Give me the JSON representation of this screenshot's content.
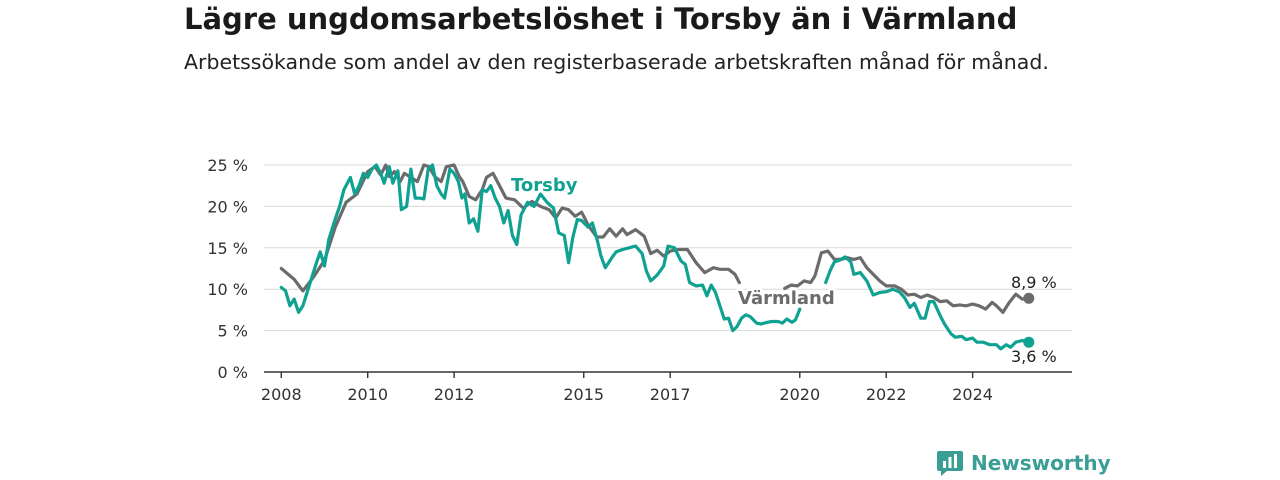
{
  "title": "Lägre ungdomsarbetslöshet i Torsby än i Värmland",
  "subtitle": "Arbetssökande som andel av den registerbaserade arbetskraften månad för månad.",
  "brand": {
    "name": "Newsworthy",
    "icon": "bar-chart-icon"
  },
  "chart_data": {
    "type": "line",
    "ylim": [
      0,
      25
    ],
    "y_ticks": [
      0,
      5,
      10,
      15,
      20,
      25
    ],
    "y_tick_labels": [
      "0 %",
      "5 %",
      "10 %",
      "15 %",
      "20 %",
      "25 %"
    ],
    "x_ticks": [
      2008,
      2010,
      2012,
      2015,
      2017,
      2020,
      2022,
      2024
    ],
    "x_tick_labels": [
      "2008",
      "2010",
      "2012",
      "2015",
      "2017",
      "2020",
      "2022",
      "2024"
    ],
    "grid": true,
    "series": [
      {
        "name": "Värmland",
        "color": "#6b6b6e",
        "end_label": "8,9 %",
        "points": [
          [
            2008.0,
            12.5
          ],
          [
            2008.3,
            11.2
          ],
          [
            2008.5,
            9.8
          ],
          [
            2008.75,
            11.5
          ],
          [
            2009.0,
            13.5
          ],
          [
            2009.25,
            17.5
          ],
          [
            2009.5,
            20.5
          ],
          [
            2009.75,
            21.5
          ],
          [
            2010.0,
            24.2
          ],
          [
            2010.17,
            24.8
          ],
          [
            2010.3,
            23.8
          ],
          [
            2010.42,
            25.0
          ],
          [
            2010.5,
            23.6
          ],
          [
            2010.62,
            24.2
          ],
          [
            2010.75,
            23.0
          ],
          [
            2010.85,
            24.0
          ],
          [
            2011.0,
            23.5
          ],
          [
            2011.15,
            23.0
          ],
          [
            2011.3,
            25.0
          ],
          [
            2011.42,
            24.8
          ],
          [
            2011.55,
            23.6
          ],
          [
            2011.7,
            23.0
          ],
          [
            2011.82,
            24.8
          ],
          [
            2012.0,
            25.0
          ],
          [
            2012.12,
            23.6
          ],
          [
            2012.2,
            23.0
          ],
          [
            2012.35,
            21.2
          ],
          [
            2012.5,
            20.8
          ],
          [
            2012.65,
            22.0
          ],
          [
            2012.75,
            23.5
          ],
          [
            2012.9,
            24.0
          ],
          [
            2013.2,
            21.0
          ],
          [
            2013.4,
            20.8
          ],
          [
            2013.6,
            19.8
          ],
          [
            2013.8,
            20.6
          ],
          [
            2014.0,
            20.0
          ],
          [
            2014.2,
            19.6
          ],
          [
            2014.35,
            18.6
          ],
          [
            2014.5,
            19.8
          ],
          [
            2014.65,
            19.6
          ],
          [
            2014.8,
            18.8
          ],
          [
            2014.95,
            19.3
          ],
          [
            2015.12,
            17.6
          ],
          [
            2015.3,
            16.3
          ],
          [
            2015.45,
            16.3
          ],
          [
            2015.6,
            17.3
          ],
          [
            2015.75,
            16.4
          ],
          [
            2015.9,
            17.3
          ],
          [
            2016.0,
            16.6
          ],
          [
            2016.2,
            17.2
          ],
          [
            2016.4,
            16.4
          ],
          [
            2016.55,
            14.3
          ],
          [
            2016.7,
            14.7
          ],
          [
            2016.85,
            14.0
          ],
          [
            2017.0,
            14.6
          ],
          [
            2017.2,
            14.8
          ],
          [
            2017.4,
            14.8
          ],
          [
            2017.6,
            13.2
          ],
          [
            2017.8,
            12.0
          ],
          [
            2018.0,
            12.6
          ],
          [
            2018.15,
            12.4
          ],
          [
            2018.35,
            12.4
          ],
          [
            2018.5,
            11.8
          ],
          [
            2018.6,
            10.8
          ],
          [
            2019.65,
            10.1
          ],
          [
            2019.8,
            10.5
          ],
          [
            2019.95,
            10.4
          ],
          [
            2020.1,
            11.0
          ],
          [
            2020.25,
            10.8
          ],
          [
            2020.35,
            11.6
          ],
          [
            2020.5,
            14.4
          ],
          [
            2020.65,
            14.6
          ],
          [
            2020.8,
            13.6
          ],
          [
            2020.95,
            13.6
          ],
          [
            2021.1,
            13.8
          ],
          [
            2021.25,
            13.6
          ],
          [
            2021.4,
            13.8
          ],
          [
            2021.55,
            12.6
          ],
          [
            2021.7,
            11.8
          ],
          [
            2021.85,
            11.0
          ],
          [
            2022.0,
            10.4
          ],
          [
            2022.2,
            10.4
          ],
          [
            2022.35,
            10.0
          ],
          [
            2022.5,
            9.3
          ],
          [
            2022.65,
            9.4
          ],
          [
            2022.8,
            9.0
          ],
          [
            2022.95,
            9.3
          ],
          [
            2023.1,
            9.0
          ],
          [
            2023.25,
            8.5
          ],
          [
            2023.4,
            8.6
          ],
          [
            2023.55,
            8.0
          ],
          [
            2023.7,
            8.1
          ],
          [
            2023.85,
            8.0
          ],
          [
            2024.0,
            8.2
          ],
          [
            2024.15,
            8.0
          ],
          [
            2024.3,
            7.6
          ],
          [
            2024.45,
            8.4
          ],
          [
            2024.55,
            8.0
          ],
          [
            2024.7,
            7.2
          ],
          [
            2024.85,
            8.4
          ],
          [
            2025.0,
            9.4
          ],
          [
            2025.15,
            8.8
          ],
          [
            2025.3,
            8.9
          ]
        ]
      },
      {
        "name": "Torsby",
        "color": "#0fa191",
        "end_label": "3,6 %",
        "points": [
          [
            2008.0,
            10.2
          ],
          [
            2008.1,
            9.8
          ],
          [
            2008.2,
            8.0
          ],
          [
            2008.3,
            8.8
          ],
          [
            2008.4,
            7.2
          ],
          [
            2008.5,
            8.0
          ],
          [
            2008.65,
            10.5
          ],
          [
            2008.8,
            13.0
          ],
          [
            2008.9,
            14.5
          ],
          [
            2009.0,
            12.8
          ],
          [
            2009.1,
            16.0
          ],
          [
            2009.25,
            18.5
          ],
          [
            2009.35,
            20.0
          ],
          [
            2009.45,
            22.0
          ],
          [
            2009.6,
            23.5
          ],
          [
            2009.7,
            21.5
          ],
          [
            2009.8,
            22.5
          ],
          [
            2009.9,
            24.0
          ],
          [
            2010.0,
            23.5
          ],
          [
            2010.1,
            24.5
          ],
          [
            2010.2,
            25.0
          ],
          [
            2010.3,
            24.0
          ],
          [
            2010.38,
            22.8
          ],
          [
            2010.5,
            24.8
          ],
          [
            2010.58,
            22.8
          ],
          [
            2010.7,
            24.3
          ],
          [
            2010.78,
            19.6
          ],
          [
            2010.9,
            20.0
          ],
          [
            2011.0,
            24.5
          ],
          [
            2011.1,
            21.0
          ],
          [
            2011.2,
            21.0
          ],
          [
            2011.3,
            20.9
          ],
          [
            2011.4,
            24.5
          ],
          [
            2011.5,
            25.0
          ],
          [
            2011.6,
            22.5
          ],
          [
            2011.7,
            21.5
          ],
          [
            2011.78,
            21.0
          ],
          [
            2011.9,
            24.5
          ],
          [
            2012.0,
            24.0
          ],
          [
            2012.1,
            23.0
          ],
          [
            2012.18,
            21.0
          ],
          [
            2012.25,
            21.5
          ],
          [
            2012.35,
            18.0
          ],
          [
            2012.45,
            18.5
          ],
          [
            2012.55,
            17.0
          ],
          [
            2012.65,
            22.0
          ],
          [
            2012.75,
            21.8
          ],
          [
            2012.85,
            22.5
          ],
          [
            2012.95,
            21.0
          ],
          [
            2013.05,
            20.0
          ],
          [
            2013.15,
            18.0
          ],
          [
            2013.25,
            19.5
          ],
          [
            2013.35,
            16.5
          ],
          [
            2013.45,
            15.4
          ],
          [
            2013.55,
            19.0
          ],
          [
            2013.7,
            20.5
          ],
          [
            2013.85,
            20.0
          ],
          [
            2014.0,
            21.5
          ],
          [
            2014.15,
            20.5
          ],
          [
            2014.3,
            19.8
          ],
          [
            2014.42,
            16.8
          ],
          [
            2014.55,
            16.5
          ],
          [
            2014.65,
            13.2
          ],
          [
            2014.75,
            16.3
          ],
          [
            2014.85,
            18.4
          ],
          [
            2014.95,
            18.3
          ],
          [
            2015.1,
            17.5
          ],
          [
            2015.2,
            18.0
          ],
          [
            2015.3,
            16.2
          ],
          [
            2015.4,
            14.0
          ],
          [
            2015.5,
            12.6
          ],
          [
            2015.65,
            13.8
          ],
          [
            2015.75,
            14.5
          ],
          [
            2015.9,
            14.8
          ],
          [
            2016.05,
            15.0
          ],
          [
            2016.2,
            15.2
          ],
          [
            2016.35,
            14.3
          ],
          [
            2016.45,
            12.2
          ],
          [
            2016.55,
            11.0
          ],
          [
            2016.7,
            11.7
          ],
          [
            2016.85,
            12.8
          ],
          [
            2016.95,
            15.2
          ],
          [
            2017.1,
            15.0
          ],
          [
            2017.25,
            13.4
          ],
          [
            2017.35,
            13.0
          ],
          [
            2017.45,
            10.8
          ],
          [
            2017.6,
            10.4
          ],
          [
            2017.75,
            10.5
          ],
          [
            2017.85,
            9.2
          ],
          [
            2017.95,
            10.5
          ],
          [
            2018.05,
            9.6
          ],
          [
            2018.15,
            8.0
          ],
          [
            2018.25,
            6.4
          ],
          [
            2018.35,
            6.5
          ],
          [
            2018.45,
            5.0
          ],
          [
            2018.55,
            5.5
          ],
          [
            2018.65,
            6.5
          ],
          [
            2018.75,
            6.9
          ],
          [
            2018.85,
            6.7
          ],
          [
            2019.0,
            5.9
          ],
          [
            2019.1,
            5.8
          ],
          [
            2019.25,
            6.0
          ],
          [
            2019.35,
            6.1
          ],
          [
            2019.5,
            6.1
          ],
          [
            2019.6,
            5.9
          ],
          [
            2019.7,
            6.4
          ],
          [
            2019.82,
            6.0
          ],
          [
            2019.9,
            6.3
          ],
          [
            2020.0,
            7.6
          ],
          [
            2020.6,
            10.8
          ],
          [
            2020.7,
            12.2
          ],
          [
            2020.8,
            13.3
          ],
          [
            2020.92,
            13.5
          ],
          [
            2021.05,
            13.9
          ],
          [
            2021.18,
            13.3
          ],
          [
            2021.25,
            11.8
          ],
          [
            2021.4,
            12.0
          ],
          [
            2021.55,
            11.0
          ],
          [
            2021.7,
            9.3
          ],
          [
            2021.85,
            9.6
          ],
          [
            2022.0,
            9.7
          ],
          [
            2022.15,
            10.0
          ],
          [
            2022.3,
            9.7
          ],
          [
            2022.42,
            9.0
          ],
          [
            2022.55,
            7.8
          ],
          [
            2022.65,
            8.3
          ],
          [
            2022.8,
            6.5
          ],
          [
            2022.9,
            6.5
          ],
          [
            2023.0,
            8.5
          ],
          [
            2023.1,
            8.5
          ],
          [
            2023.25,
            6.8
          ],
          [
            2023.35,
            5.8
          ],
          [
            2023.5,
            4.6
          ],
          [
            2023.6,
            4.2
          ],
          [
            2023.75,
            4.3
          ],
          [
            2023.85,
            3.9
          ],
          [
            2024.0,
            4.1
          ],
          [
            2024.1,
            3.6
          ],
          [
            2024.25,
            3.6
          ],
          [
            2024.4,
            3.3
          ],
          [
            2024.55,
            3.3
          ],
          [
            2024.65,
            2.8
          ],
          [
            2024.78,
            3.3
          ],
          [
            2024.88,
            3.0
          ],
          [
            2025.0,
            3.6
          ],
          [
            2025.15,
            3.8
          ],
          [
            2025.3,
            3.6
          ]
        ]
      }
    ]
  }
}
